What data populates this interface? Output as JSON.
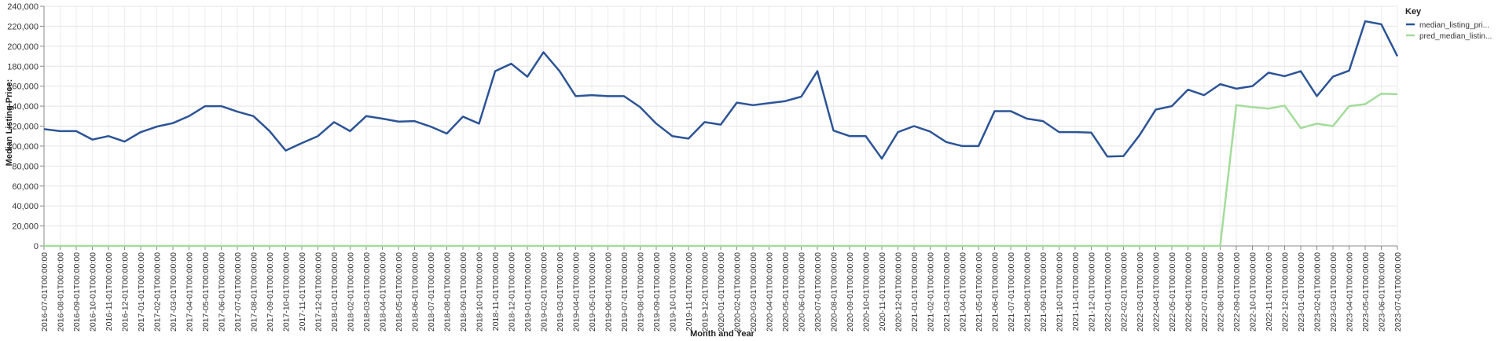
{
  "chart_data": {
    "type": "line",
    "xlabel": "Month and Year",
    "ylabel": "Median Listing Price:",
    "ylim": [
      0,
      240000
    ],
    "yticks": [
      "0",
      "20,000",
      "40,000",
      "60,000",
      "80,000",
      "100,000",
      "120,000",
      "140,000",
      "160,000",
      "180,000",
      "200,000",
      "220,000",
      "240,000"
    ],
    "grid": true,
    "legend": {
      "title": "Key",
      "position": "right"
    },
    "x": [
      "2016-07-01T00:00:00",
      "2016-08-01T00:00:00",
      "2016-09-01T00:00:00",
      "2016-10-01T00:00:00",
      "2016-11-01T00:00:00",
      "2016-12-01T00:00:00",
      "2017-01-01T00:00:00",
      "2017-02-01T00:00:00",
      "2017-03-01T00:00:00",
      "2017-04-01T00:00:00",
      "2017-05-01T00:00:00",
      "2017-06-01T00:00:00",
      "2017-07-01T00:00:00",
      "2017-08-01T00:00:00",
      "2017-09-01T00:00:00",
      "2017-10-01T00:00:00",
      "2017-11-01T00:00:00",
      "2017-12-01T00:00:00",
      "2018-01-01T00:00:00",
      "2018-02-01T00:00:00",
      "2018-03-01T00:00:00",
      "2018-04-01T00:00:00",
      "2018-05-01T00:00:00",
      "2018-06-01T00:00:00",
      "2018-07-01T00:00:00",
      "2018-08-01T00:00:00",
      "2018-09-01T00:00:00",
      "2018-10-01T00:00:00",
      "2018-11-01T00:00:00",
      "2018-12-01T00:00:00",
      "2019-01-01T00:00:00",
      "2019-02-01T00:00:00",
      "2019-03-01T00:00:00",
      "2019-04-01T00:00:00",
      "2019-05-01T00:00:00",
      "2019-06-01T00:00:00",
      "2019-07-01T00:00:00",
      "2019-08-01T00:00:00",
      "2019-09-01T00:00:00",
      "2019-10-01T00:00:00",
      "2019-11-01T00:00:00",
      "2019-12-01T00:00:00",
      "2020-01-01T00:00:00",
      "2020-02-01T00:00:00",
      "2020-03-01T00:00:00",
      "2020-04-01T00:00:00",
      "2020-05-01T00:00:00",
      "2020-06-01T00:00:00",
      "2020-07-01T00:00:00",
      "2020-08-01T00:00:00",
      "2020-09-01T00:00:00",
      "2020-10-01T00:00:00",
      "2020-11-01T00:00:00",
      "2020-12-01T00:00:00",
      "2021-01-01T00:00:00",
      "2021-02-01T00:00:00",
      "2021-03-01T00:00:00",
      "2021-04-01T00:00:00",
      "2021-05-01T00:00:00",
      "2021-06-01T00:00:00",
      "2021-07-01T00:00:00",
      "2021-08-01T00:00:00",
      "2021-09-01T00:00:00",
      "2021-10-01T00:00:00",
      "2021-11-01T00:00:00",
      "2021-12-01T00:00:00",
      "2022-01-01T00:00:00",
      "2022-02-01T00:00:00",
      "2022-03-01T00:00:00",
      "2022-04-01T00:00:00",
      "2022-05-01T00:00:00",
      "2022-06-01T00:00:00",
      "2022-07-01T00:00:00",
      "2022-08-01T00:00:00",
      "2022-09-01T00:00:00",
      "2022-10-01T00:00:00",
      "2022-11-01T00:00:00",
      "2022-12-01T00:00:00",
      "2023-01-01T00:00:00",
      "2023-02-01T00:00:00",
      "2023-03-01T00:00:00",
      "2023-04-01T00:00:00",
      "2023-05-01T00:00:00",
      "2023-06-01T00:00:00",
      "2023-07-01T00:00:00"
    ],
    "series": [
      {
        "name": "median_listing_pri...",
        "color": "#2c5496",
        "values": [
          117000,
          115000,
          115000,
          106500,
          110000,
          104500,
          114000,
          119500,
          123000,
          130000,
          140000,
          140000,
          134500,
          130000,
          115000,
          95500,
          103000,
          110000,
          124000,
          115000,
          130000,
          127500,
          124500,
          125000,
          119500,
          112500,
          129500,
          122500,
          175000,
          182500,
          169500,
          194000,
          175000,
          150000,
          151000,
          150000,
          150000,
          139000,
          122500,
          110000,
          107500,
          124000,
          121500,
          143500,
          141000,
          143000,
          145000,
          149500,
          175000,
          115500,
          110000,
          110000,
          87500,
          114000,
          120000,
          114500,
          104000,
          100000,
          100000,
          135000,
          135000,
          127500,
          125000,
          114000,
          114000,
          113500,
          89500,
          90000,
          111000,
          136500,
          140000,
          156500,
          151000,
          162000,
          157500,
          160000,
          173500,
          170000,
          175000,
          150000,
          169500,
          175500,
          225000,
          222000,
          190000
        ]
      },
      {
        "name": "pred_median_listin...",
        "color": "#a3dc9a",
        "values": [
          0,
          0,
          0,
          0,
          0,
          0,
          0,
          0,
          0,
          0,
          0,
          0,
          0,
          0,
          0,
          0,
          0,
          0,
          0,
          0,
          0,
          0,
          0,
          0,
          0,
          0,
          0,
          0,
          0,
          0,
          0,
          0,
          0,
          0,
          0,
          0,
          0,
          0,
          0,
          0,
          0,
          0,
          0,
          0,
          0,
          0,
          0,
          0,
          0,
          0,
          0,
          0,
          0,
          0,
          0,
          0,
          0,
          0,
          0,
          0,
          0,
          0,
          0,
          0,
          0,
          0,
          0,
          0,
          0,
          0,
          0,
          0,
          0,
          0,
          141000,
          139000,
          137500,
          140500,
          118000,
          122500,
          120000,
          140000,
          142000,
          152500,
          152000
        ]
      }
    ]
  }
}
